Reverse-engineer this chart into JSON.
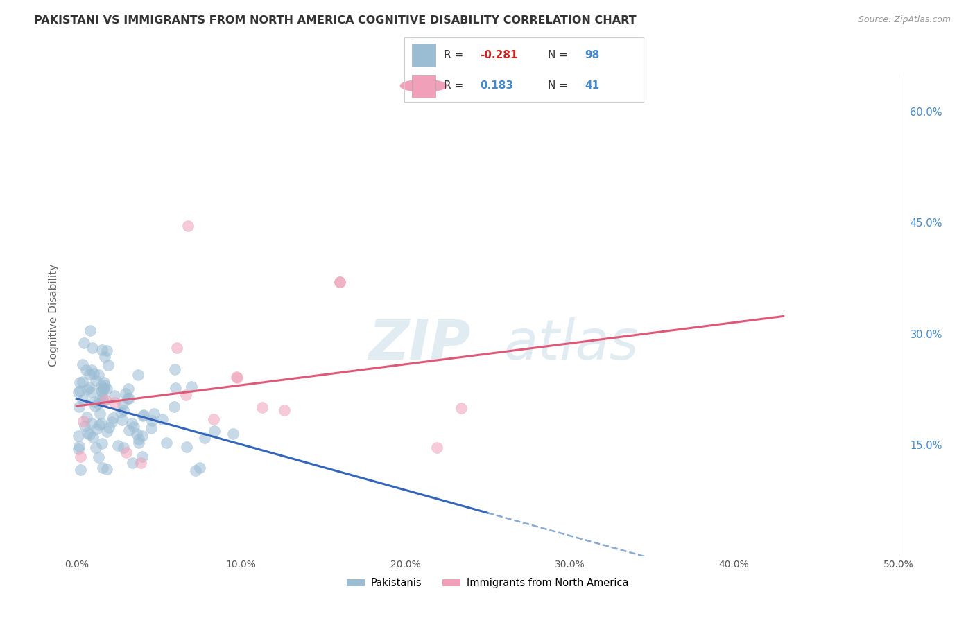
{
  "title": "PAKISTANI VS IMMIGRANTS FROM NORTH AMERICA COGNITIVE DISABILITY CORRELATION CHART",
  "source": "Source: ZipAtlas.com",
  "xlabel_ticks": [
    "0.0%",
    "10.0%",
    "20.0%",
    "30.0%",
    "40.0%",
    "50.0%"
  ],
  "xlabel_vals": [
    0.0,
    0.1,
    0.2,
    0.3,
    0.4,
    0.5
  ],
  "ylabel": "Cognitive Disability",
  "right_yticks": [
    "60.0%",
    "45.0%",
    "30.0%",
    "15.0%"
  ],
  "right_ytick_vals": [
    0.6,
    0.45,
    0.3,
    0.15
  ],
  "xlim": [
    -0.005,
    0.505
  ],
  "ylim": [
    0.0,
    0.65
  ],
  "watermark_zip": "ZIP",
  "watermark_atlas": "atlas",
  "legend_R1": "-0.281",
  "legend_N1": "98",
  "legend_R2": "0.183",
  "legend_N2": "41",
  "pakistani_color": "#9bbdd4",
  "immigrant_color": "#f0a0b8",
  "trend_pakistani_solid_color": "#3366bb",
  "trend_pakistani_dash_color": "#88aad4",
  "trend_immigrant_color": "#e05878",
  "background_color": "#ffffff",
  "grid_color": "#cccccc",
  "title_color": "#333333",
  "source_color": "#999999",
  "axis_label_color": "#666666",
  "right_tick_color": "#4488cc",
  "legend_text_color": "#333333",
  "legend_r_neg_color": "#cc2222",
  "legend_r_pos_color": "#4488cc",
  "legend_n_color": "#4488cc"
}
